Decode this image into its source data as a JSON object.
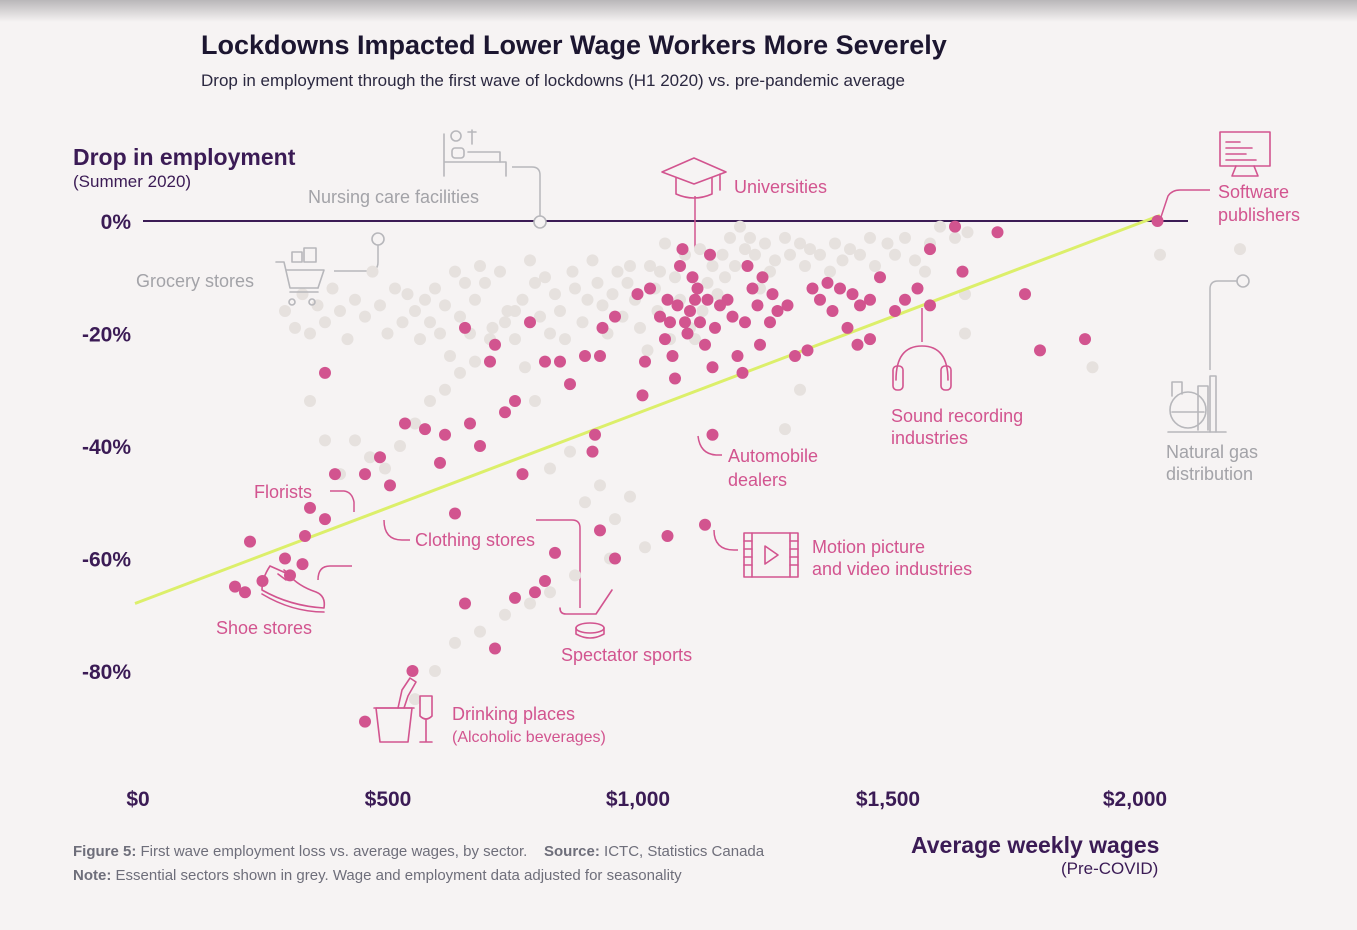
{
  "title": "Lockdowns Impacted Lower Wage Workers More Severely",
  "subtitle": "Drop in employment through the first wave of lockdowns (H1 2020) vs. pre-pandemic average",
  "colors": {
    "non_essential": "#d2548f",
    "essential": "#e6e1de",
    "trend": "#dcef6a",
    "zero_line": "#3b1b55",
    "axis_text": "#3b1b55"
  },
  "caption": {
    "figure_label": "Figure 5:",
    "figure_text": "First wave employment loss vs. average wages, by sector.",
    "source_label": "Source:",
    "source_text": "ICTC, Statistics Canada",
    "note_label": "Note:",
    "note_text": "Essential sectors shown in grey. Wage and employment data adjusted for seasonality"
  },
  "chart_data": {
    "type": "scatter",
    "title": "Lockdowns Impacted Lower Wage Workers More Severely",
    "subtitle": "Drop in employment through the first wave of lockdowns (H1 2020) vs. pre-pandemic average",
    "xlabel": "Average weekly wages",
    "xlabel_sub": "(Pre-COVID)",
    "ylabel": "Drop in employment",
    "ylabel_sub": "(Summer 2020)",
    "xlim": [
      0,
      2100
    ],
    "ylim": [
      -90,
      0
    ],
    "x_ticks": [
      0,
      500,
      1000,
      1500,
      2000
    ],
    "x_tick_labels": [
      "$0",
      "$500",
      "$1,000",
      "$1,500",
      "$2,000"
    ],
    "y_ticks": [
      0,
      -20,
      -40,
      -60,
      -80
    ],
    "y_tick_labels": [
      "0%",
      "-20%",
      "-40%",
      "-60%",
      "-80%"
    ],
    "grid": false,
    "trend_line": {
      "x": [
        0,
        2050
      ],
      "y": [
        -68,
        1
      ]
    },
    "series": [
      {
        "key": "non_essential",
        "points": [
          [
            2045,
            0
          ],
          [
            1810,
            -23
          ],
          [
            1900,
            -21
          ],
          [
            1780,
            -13
          ],
          [
            1725,
            -2
          ],
          [
            1640,
            -1
          ],
          [
            1655,
            -9
          ],
          [
            1590,
            -5
          ],
          [
            1590,
            -15
          ],
          [
            1565,
            -12
          ],
          [
            1540,
            -14
          ],
          [
            1520,
            -16
          ],
          [
            1490,
            -10
          ],
          [
            1470,
            -21
          ],
          [
            1445,
            -22
          ],
          [
            1470,
            -14
          ],
          [
            1450,
            -15
          ],
          [
            1435,
            -13
          ],
          [
            1425,
            -19
          ],
          [
            1410,
            -12
          ],
          [
            1395,
            -16
          ],
          [
            1385,
            -11
          ],
          [
            1370,
            -14
          ],
          [
            1355,
            -12
          ],
          [
            1345,
            -23
          ],
          [
            1320,
            -24
          ],
          [
            1305,
            -15
          ],
          [
            1285,
            -16
          ],
          [
            1275,
            -13
          ],
          [
            1270,
            -18
          ],
          [
            1255,
            -10
          ],
          [
            1250,
            -22
          ],
          [
            1245,
            -15
          ],
          [
            1235,
            -12
          ],
          [
            1225,
            -8
          ],
          [
            1220,
            -18
          ],
          [
            1215,
            -27
          ],
          [
            1205,
            -24
          ],
          [
            1195,
            -17
          ],
          [
            1185,
            -14
          ],
          [
            1170,
            -15
          ],
          [
            1160,
            -19
          ],
          [
            1155,
            -26
          ],
          [
            1150,
            -6
          ],
          [
            1145,
            -14
          ],
          [
            1140,
            -22
          ],
          [
            1130,
            -18
          ],
          [
            1125,
            -12
          ],
          [
            1120,
            -14
          ],
          [
            1115,
            -10
          ],
          [
            1110,
            -16
          ],
          [
            1105,
            -20
          ],
          [
            1100,
            -18
          ],
          [
            1095,
            -5
          ],
          [
            1090,
            -8
          ],
          [
            1085,
            -15
          ],
          [
            1080,
            -28
          ],
          [
            1075,
            -24
          ],
          [
            1070,
            -18
          ],
          [
            1065,
            -14
          ],
          [
            1060,
            -21
          ],
          [
            1050,
            -17
          ],
          [
            1030,
            -12
          ],
          [
            1020,
            -25
          ],
          [
            1015,
            -31
          ],
          [
            1005,
            -13
          ],
          [
            960,
            -17
          ],
          [
            935,
            -19
          ],
          [
            930,
            -24
          ],
          [
            920,
            -38
          ],
          [
            915,
            -41
          ],
          [
            900,
            -24
          ],
          [
            870,
            -29
          ],
          [
            850,
            -25
          ],
          [
            820,
            -25
          ],
          [
            790,
            -18
          ],
          [
            775,
            -45
          ],
          [
            760,
            -32
          ],
          [
            740,
            -34
          ],
          [
            720,
            -22
          ],
          [
            710,
            -25
          ],
          [
            690,
            -40
          ],
          [
            670,
            -36
          ],
          [
            660,
            -19
          ],
          [
            640,
            -52
          ],
          [
            620,
            -38
          ],
          [
            610,
            -43
          ],
          [
            580,
            -37
          ],
          [
            540,
            -36
          ],
          [
            510,
            -47
          ],
          [
            490,
            -42
          ],
          [
            460,
            -45
          ],
          [
            400,
            -45
          ],
          [
            380,
            -27
          ],
          [
            380,
            -53
          ],
          [
            350,
            -51
          ],
          [
            340,
            -56
          ],
          [
            335,
            -61
          ],
          [
            310,
            -63
          ],
          [
            300,
            -60
          ],
          [
            255,
            -64
          ],
          [
            230,
            -57
          ],
          [
            220,
            -66
          ],
          [
            200,
            -65
          ],
          [
            1155,
            -38
          ],
          [
            1140,
            -54
          ],
          [
            1065,
            -56
          ],
          [
            960,
            -60
          ],
          [
            930,
            -55
          ],
          [
            840,
            -59
          ],
          [
            820,
            -64
          ],
          [
            800,
            -66
          ],
          [
            760,
            -67
          ],
          [
            720,
            -76
          ],
          [
            660,
            -68
          ],
          [
            555,
            -80
          ],
          [
            460,
            -89
          ]
        ]
      },
      {
        "key": "essential",
        "points": [
          [
            2210,
            -5
          ],
          [
            2050,
            -6
          ],
          [
            1915,
            -26
          ],
          [
            1660,
            -13
          ],
          [
            1660,
            -20
          ],
          [
            1665,
            -2
          ],
          [
            1640,
            -3
          ],
          [
            1610,
            -1
          ],
          [
            1580,
            -9
          ],
          [
            1590,
            -4
          ],
          [
            1560,
            -7
          ],
          [
            1540,
            -3
          ],
          [
            1520,
            -6
          ],
          [
            1505,
            -4
          ],
          [
            1480,
            -8
          ],
          [
            1470,
            -3
          ],
          [
            1450,
            -6
          ],
          [
            1430,
            -5
          ],
          [
            1415,
            -7
          ],
          [
            1400,
            -4
          ],
          [
            1390,
            -9
          ],
          [
            1370,
            -6
          ],
          [
            1350,
            -5
          ],
          [
            1340,
            -8
          ],
          [
            1330,
            -4
          ],
          [
            1310,
            -6
          ],
          [
            1300,
            -3
          ],
          [
            1280,
            -7
          ],
          [
            1270,
            -9
          ],
          [
            1260,
            -4
          ],
          [
            1250,
            -12
          ],
          [
            1240,
            -6
          ],
          [
            1230,
            -3
          ],
          [
            1220,
            -5
          ],
          [
            1210,
            -1
          ],
          [
            1200,
            -8
          ],
          [
            1190,
            -3
          ],
          [
            1180,
            -10
          ],
          [
            1175,
            -6
          ],
          [
            1165,
            -13
          ],
          [
            1155,
            -8
          ],
          [
            1145,
            -11
          ],
          [
            1135,
            -16
          ],
          [
            1130,
            -5
          ],
          [
            1120,
            -21
          ],
          [
            1110,
            -19
          ],
          [
            1100,
            -6
          ],
          [
            1090,
            -14
          ],
          [
            1080,
            -10
          ],
          [
            1070,
            -21
          ],
          [
            1060,
            -4
          ],
          [
            1050,
            -9
          ],
          [
            1045,
            -16
          ],
          [
            1040,
            -12
          ],
          [
            1030,
            -8
          ],
          [
            1025,
            -23
          ],
          [
            1010,
            -19
          ],
          [
            1000,
            -14
          ],
          [
            990,
            -8
          ],
          [
            985,
            -11
          ],
          [
            975,
            -17
          ],
          [
            965,
            -9
          ],
          [
            955,
            -13
          ],
          [
            945,
            -20
          ],
          [
            935,
            -15
          ],
          [
            925,
            -11
          ],
          [
            915,
            -7
          ],
          [
            905,
            -14
          ],
          [
            895,
            -18
          ],
          [
            880,
            -12
          ],
          [
            875,
            -9
          ],
          [
            860,
            -21
          ],
          [
            850,
            -16
          ],
          [
            840,
            -13
          ],
          [
            830,
            -20
          ],
          [
            820,
            -10
          ],
          [
            810,
            -17
          ],
          [
            800,
            -11
          ],
          [
            790,
            -7
          ],
          [
            775,
            -14
          ],
          [
            760,
            -21
          ],
          [
            745,
            -16
          ],
          [
            730,
            -9
          ],
          [
            715,
            -19
          ],
          [
            700,
            -11
          ],
          [
            690,
            -8
          ],
          [
            680,
            -14
          ],
          [
            670,
            -20
          ],
          [
            660,
            -11
          ],
          [
            650,
            -17
          ],
          [
            640,
            -9
          ],
          [
            630,
            -24
          ],
          [
            620,
            -15
          ],
          [
            610,
            -20
          ],
          [
            600,
            -12
          ],
          [
            590,
            -18
          ],
          [
            580,
            -14
          ],
          [
            570,
            -21
          ],
          [
            560,
            -16
          ],
          [
            545,
            -13
          ],
          [
            535,
            -18
          ],
          [
            520,
            -12
          ],
          [
            505,
            -20
          ],
          [
            490,
            -15
          ],
          [
            475,
            -9
          ],
          [
            460,
            -17
          ],
          [
            440,
            -14
          ],
          [
            425,
            -21
          ],
          [
            410,
            -16
          ],
          [
            395,
            -12
          ],
          [
            380,
            -18
          ],
          [
            365,
            -15
          ],
          [
            350,
            -20
          ],
          [
            335,
            -13
          ],
          [
            320,
            -19
          ],
          [
            300,
            -16
          ],
          [
            350,
            -32
          ],
          [
            380,
            -39
          ],
          [
            410,
            -45
          ],
          [
            440,
            -39
          ],
          [
            470,
            -42
          ],
          [
            500,
            -44
          ],
          [
            530,
            -40
          ],
          [
            560,
            -36
          ],
          [
            590,
            -32
          ],
          [
            620,
            -30
          ],
          [
            650,
            -27
          ],
          [
            680,
            -25
          ],
          [
            710,
            -21
          ],
          [
            740,
            -18
          ],
          [
            760,
            -16
          ],
          [
            780,
            -26
          ],
          [
            800,
            -32
          ],
          [
            830,
            -44
          ],
          [
            870,
            -41
          ],
          [
            900,
            -50
          ],
          [
            930,
            -47
          ],
          [
            960,
            -53
          ],
          [
            990,
            -49
          ],
          [
            1020,
            -58
          ],
          [
            950,
            -60
          ],
          [
            880,
            -63
          ],
          [
            830,
            -66
          ],
          [
            790,
            -68
          ],
          [
            740,
            -70
          ],
          [
            690,
            -73
          ],
          [
            640,
            -75
          ],
          [
            600,
            -80
          ],
          [
            560,
            -85
          ],
          [
            1330,
            -30
          ],
          [
            1300,
            -37
          ]
        ]
      }
    ],
    "annotations": [
      {
        "label": "Universities",
        "group": "non_essential"
      },
      {
        "label": "Software publishers",
        "group": "non_essential"
      },
      {
        "label": "Sound recording industries",
        "group": "non_essential"
      },
      {
        "label": "Automobile dealers",
        "group": "non_essential"
      },
      {
        "label": "Motion picture and video industries",
        "group": "non_essential"
      },
      {
        "label": "Spectator sports",
        "group": "non_essential"
      },
      {
        "label": "Clothing stores",
        "group": "non_essential"
      },
      {
        "label": "Florists",
        "group": "non_essential"
      },
      {
        "label": "Shoe stores",
        "group": "non_essential"
      },
      {
        "label": "Drinking places",
        "sublabel": "(Alcoholic beverages)",
        "group": "non_essential"
      },
      {
        "label": "Nursing care facilities",
        "group": "essential"
      },
      {
        "label": "Grocery stores",
        "group": "essential"
      },
      {
        "label": "Natural gas distribution",
        "group": "essential"
      }
    ]
  },
  "labels": {
    "universities": "Universities",
    "software": [
      "Software",
      "publishers"
    ],
    "sound": [
      "Sound recording",
      "industries"
    ],
    "auto": [
      "Automobile",
      "dealers"
    ],
    "motion": [
      "Motion picture",
      "and video industries"
    ],
    "spectator": "Spectator sports",
    "clothing": "Clothing stores",
    "florists": "Florists",
    "shoe": "Shoe stores",
    "drinking": "Drinking places",
    "drinking_sub": "(Alcoholic beverages)",
    "nursing": "Nursing care facilities",
    "grocery": "Grocery stores",
    "natgas": [
      "Natural gas",
      "distribution"
    ]
  }
}
